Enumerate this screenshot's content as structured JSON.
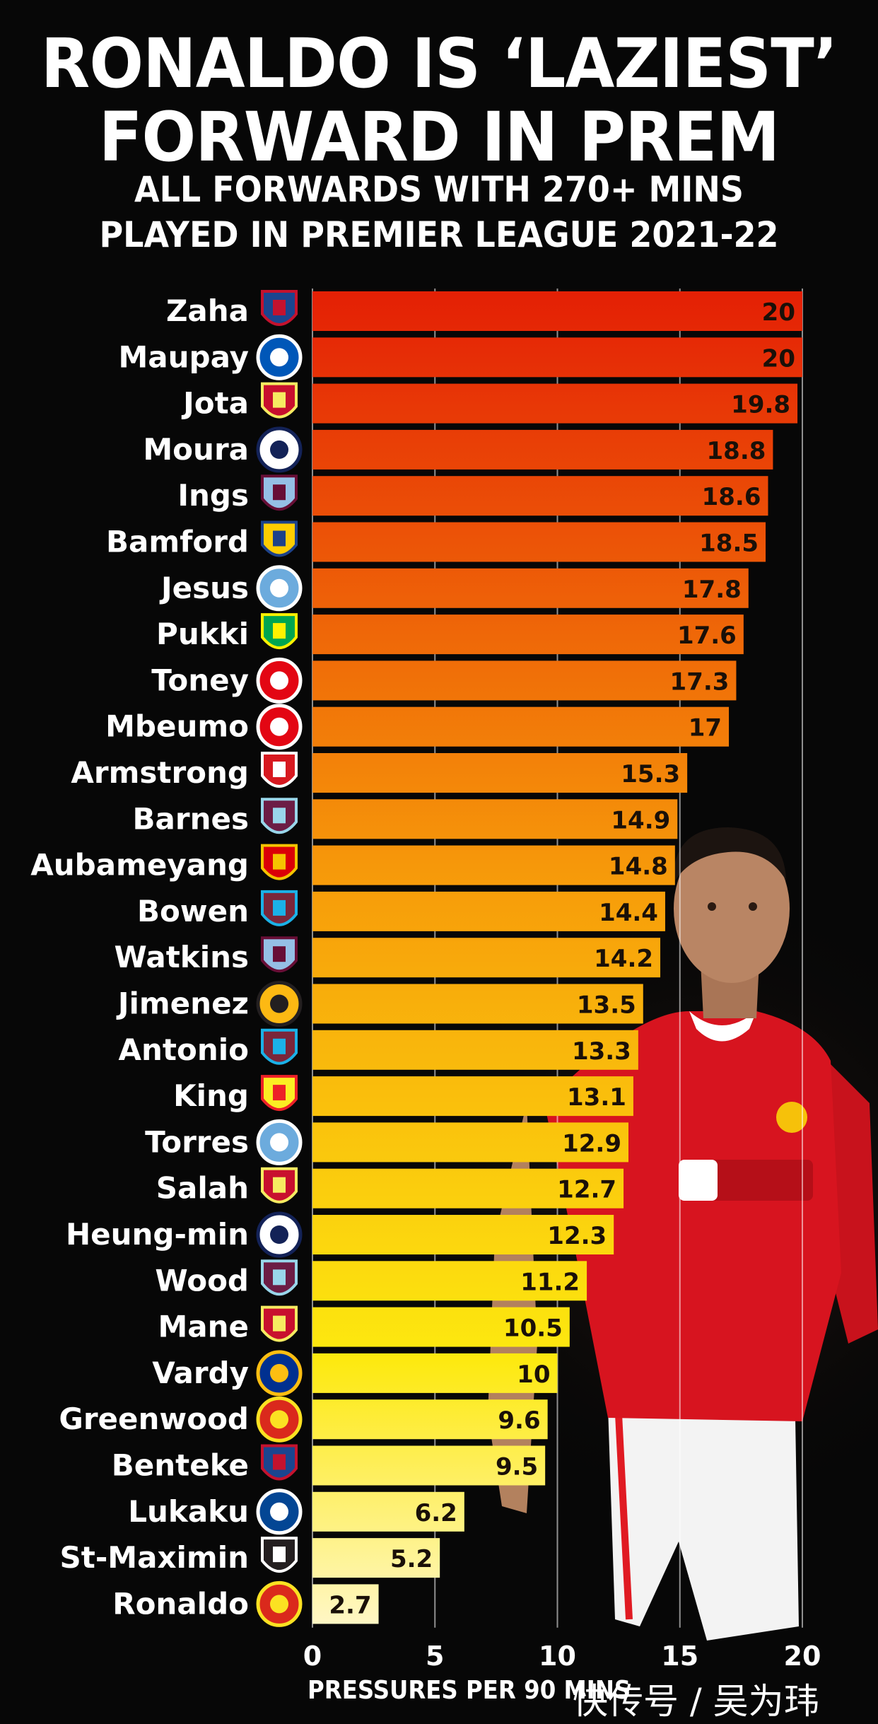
{
  "chart_data": {
    "type": "bar",
    "orientation": "horizontal",
    "title_lines": [
      "RONALDO IS ‘LAZIEST’",
      "FORWARD IN PREM"
    ],
    "subtitle_lines": [
      "ALL FORWARDS WITH 270+ MINS",
      "PLAYED IN PREMIER LEAGUE 2021-22"
    ],
    "xlabel": "PRESSURES PER 90 MINS",
    "xlim": [
      0,
      20
    ],
    "xticks": [
      "0",
      "5",
      "10",
      "15",
      "20"
    ],
    "grid": true,
    "colors": {
      "high": "#e41f05",
      "mid": "#f79d0a",
      "low": "#fde90f",
      "lowest": "#fff7c6"
    },
    "categories": [
      "Zaha",
      "Maupay",
      "Jota",
      "Moura",
      "Ings",
      "Bamford",
      "Jesus",
      "Pukki",
      "Toney",
      "Mbeumo",
      "Armstrong",
      "Barnes",
      "Aubameyang",
      "Bowen",
      "Watkins",
      "Jimenez",
      "Antonio",
      "King",
      "Torres",
      "Salah",
      "Heung-min",
      "Wood",
      "Mane",
      "Vardy",
      "Greenwood",
      "Benteke",
      "Lukaku",
      "St-Maximin",
      "Ronaldo"
    ],
    "clubs": [
      "crystal-palace",
      "brighton",
      "liverpool",
      "tottenham",
      "aston-villa",
      "leeds",
      "man-city",
      "norwich",
      "brentford",
      "brentford",
      "southampton",
      "burnley",
      "arsenal",
      "west-ham",
      "aston-villa",
      "wolves",
      "west-ham",
      "watford",
      "man-city",
      "liverpool",
      "tottenham",
      "burnley",
      "liverpool",
      "leicester",
      "man-united",
      "crystal-palace",
      "chelsea",
      "newcastle",
      "man-united"
    ],
    "value_labels": [
      "20",
      "20",
      "19.8",
      "18.8",
      "18.6",
      "18.5",
      "17.8",
      "17.6",
      "17.3",
      "17",
      "15.3",
      "14.9",
      "14.8",
      "14.4",
      "14.2",
      "13.5",
      "13.3",
      "13.1",
      "12.9",
      "12.7",
      "12.3",
      "11.2",
      "10.5",
      "10",
      "9.6",
      "9.5",
      "6.2",
      "5.2",
      "2.7"
    ],
    "values": [
      20,
      20,
      19.8,
      18.8,
      18.6,
      18.5,
      17.8,
      17.6,
      17.3,
      17,
      15.3,
      14.9,
      14.8,
      14.4,
      14.2,
      13.5,
      13.3,
      13.1,
      12.9,
      12.7,
      12.3,
      11.2,
      10.5,
      10,
      9.6,
      9.5,
      6.2,
      5.2,
      2.7
    ]
  },
  "watermark": "快传号 / 吴为玮"
}
